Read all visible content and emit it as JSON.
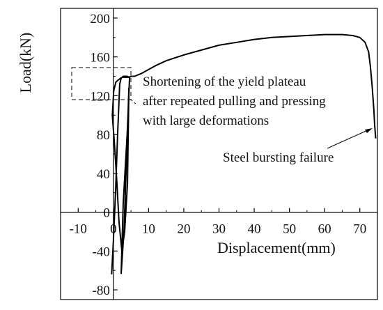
{
  "chart_data": {
    "type": "line",
    "title": "",
    "xlabel": "Displacement(mm)",
    "ylabel": "Load(kN)",
    "xlim": [
      -15,
      75
    ],
    "ylim": [
      -90,
      210
    ],
    "x_ticks": [
      -10,
      0,
      10,
      20,
      30,
      40,
      50,
      60,
      70
    ],
    "y_ticks": [
      -80,
      -40,
      0,
      40,
      80,
      120,
      160,
      200
    ],
    "x_tick_labels": [
      "-10",
      "0",
      "10",
      "20",
      "30",
      "40",
      "50",
      "60",
      "70"
    ],
    "y_tick_labels": [
      "-80",
      "-40",
      "0",
      "40",
      "80",
      "120",
      "160",
      "200"
    ],
    "grid": false,
    "series": [
      {
        "name": "",
        "color": "#000000",
        "x": [
          -0.5,
          0.0,
          0.6,
          1.2,
          1.8,
          2.2,
          2.8,
          3.8,
          4.6,
          3.9,
          2.8,
          2.2,
          3.0,
          3.8,
          4.4,
          4.0,
          3.2,
          2.4,
          1.6,
          1.0,
          0.3,
          -0.3,
          0.1,
          0.7,
          1.3,
          1.7,
          2.0,
          2.6,
          3.6,
          4.4,
          5.0,
          5.3,
          6.0,
          8.0,
          10.0,
          12.0,
          15.0,
          20.0,
          25.0,
          30.0,
          35.0,
          40.0,
          45.0,
          50.0,
          55.0,
          60.0,
          65.0,
          68.0,
          70.0,
          71.5,
          72.5,
          73.0,
          73.5,
          74.0,
          74.2,
          74.5
        ],
        "y": [
          -64,
          -30,
          20,
          80,
          132,
          138,
          140,
          140,
          139,
          80,
          10,
          -63,
          -20,
          60,
          128,
          30,
          -20,
          -40,
          -10,
          30,
          70,
          100,
          125,
          134,
          136,
          137,
          138,
          139,
          139,
          139,
          140,
          140,
          140,
          143,
          147,
          151,
          156,
          162,
          167,
          172,
          175,
          178,
          180,
          181,
          182,
          183,
          183,
          182,
          180,
          175,
          165,
          150,
          130,
          105,
          90,
          76
        ]
      }
    ],
    "annotations": [
      {
        "text": "Shortening of the yield plateau",
        "x": 16,
        "y": 148
      },
      {
        "text": "after repeated pulling and pressing",
        "x": 16,
        "y": 128
      },
      {
        "text": "with large deformations",
        "x": 16,
        "y": 108
      },
      {
        "text": "Steel bursting failure",
        "x": 47,
        "y": 56
      }
    ]
  }
}
